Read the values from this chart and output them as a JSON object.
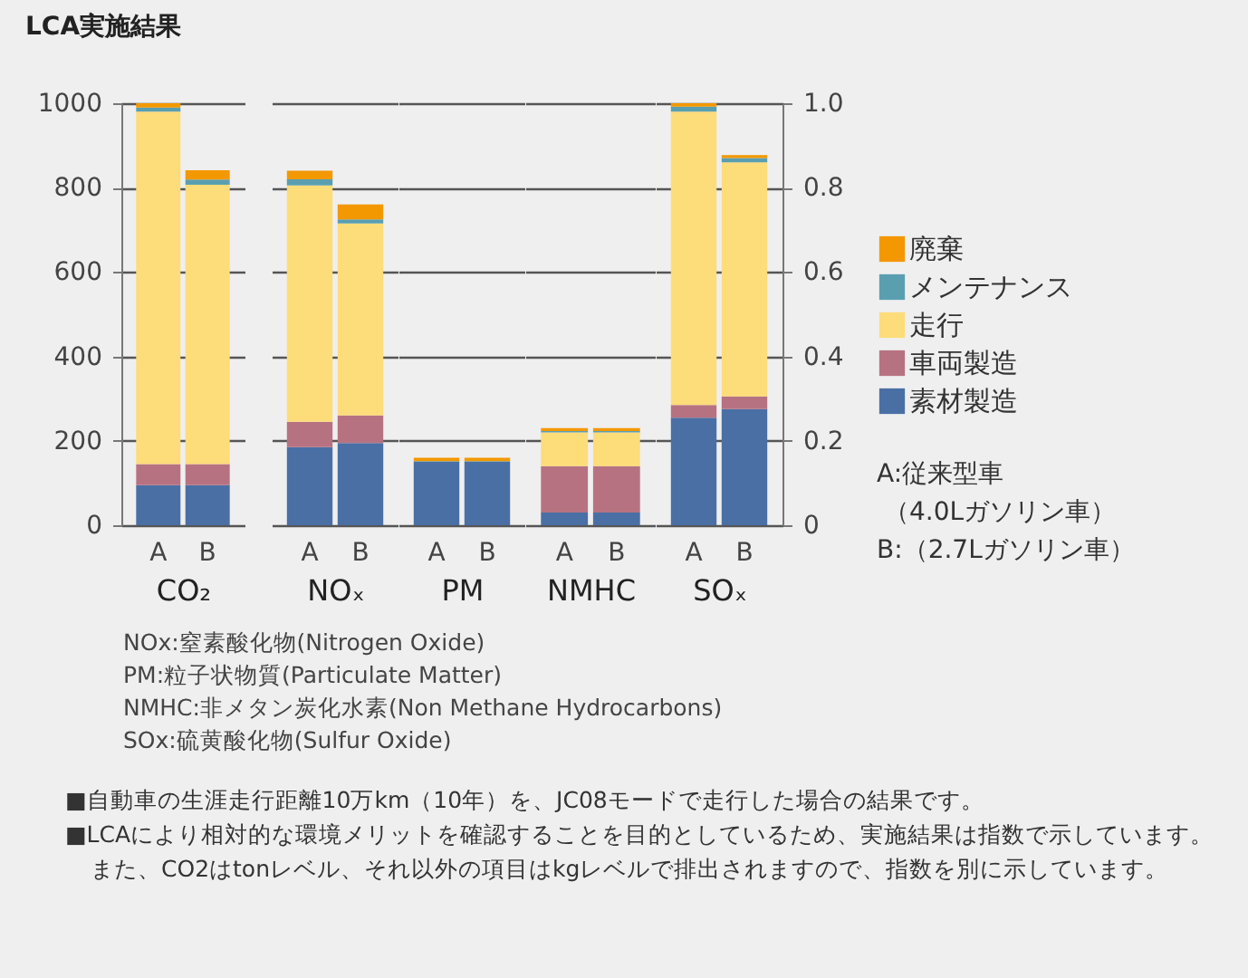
{
  "chart_data": [
    {
      "type": "bar",
      "stacked": true,
      "title": "LCA実施結果",
      "categories": [
        "A",
        "B"
      ],
      "xlabel": "CO₂",
      "ylim": [
        0,
        1000
      ],
      "yticks": [
        0,
        200,
        400,
        600,
        800,
        1000
      ],
      "grid": "y",
      "series": [
        {
          "color": "#4a6fa5",
          "values": [
            95,
            95
          ]
        },
        {
          "color": "#b77282",
          "values": [
            50,
            50
          ]
        },
        {
          "color": "#fddc7a",
          "values": [
            835,
            662
          ]
        },
        {
          "color": "#5a9fb0",
          "values": [
            10,
            12
          ]
        },
        {
          "color": "#f39800",
          "values": [
            10,
            22
          ]
        }
      ],
      "annotations": [
        "NOx:窒素酸化物(Nitrogen Oxide)",
        "PM:粒子状物質(Particulate Matter)",
        "NMHC:非メタン炭化水素(Non Methane Hydrocarbons)",
        "SOx:硫黄酸化物(Sulfur Oxide)",
        "■自動車の生涯走行距離10万km（10年）を、JC08モードで走行した場合の結果です。",
        "■LCAにより相対的な環境メリットを確認することを目的としているため、実施結果は指数で示しています。また、CO2はtonレベル、それ以外の項目はkgレベルで排出されますので、指数を別に示しています。"
      ]
    },
    {
      "type": "bar",
      "stacked": true,
      "categories": [
        "A",
        "B"
      ],
      "xlabel": "NOₓ",
      "ylim": [
        0,
        1
      ],
      "yticks": [
        0,
        0.2,
        0.4,
        0.6,
        0.8,
        1
      ],
      "grid": "y",
      "tick_labels": "x",
      "series": [
        {
          "color": "#4a6fa5",
          "values": [
            0.185,
            0.195
          ]
        },
        {
          "color": "#b77282",
          "values": [
            0.06,
            0.065
          ]
        },
        {
          "color": "#fddc7a",
          "values": [
            0.56,
            0.455
          ]
        },
        {
          "color": "#5a9fb0",
          "values": [
            0.015,
            0.01
          ]
        },
        {
          "color": "#f39800",
          "values": [
            0.02,
            0.035
          ]
        }
      ]
    },
    {
      "type": "bar",
      "stacked": true,
      "categories": [
        "A",
        "B"
      ],
      "xlabel": "PM",
      "ylim": [
        0,
        1
      ],
      "yticks": [
        0,
        0.2,
        0.4,
        0.6,
        0.8,
        1
      ],
      "grid": "y",
      "tick_labels": "x",
      "series": [
        {
          "color": "#4a6fa5",
          "values": [
            0.15,
            0.15
          ]
        },
        {
          "color": "#b77282",
          "values": [
            0,
            0
          ]
        },
        {
          "color": "#fddc7a",
          "values": [
            0,
            0
          ]
        },
        {
          "color": "#5a9fb0",
          "values": [
            0.002,
            0.002
          ]
        },
        {
          "color": "#f39800",
          "values": [
            0.008,
            0.008
          ]
        }
      ]
    },
    {
      "type": "bar",
      "stacked": true,
      "categories": [
        "A",
        "B"
      ],
      "xlabel": "NMHC",
      "ylim": [
        0,
        1
      ],
      "yticks": [
        0,
        0.2,
        0.4,
        0.6,
        0.8,
        1
      ],
      "grid": "y",
      "tick_labels": "x",
      "series": [
        {
          "color": "#4a6fa5",
          "values": [
            0.03,
            0.03
          ]
        },
        {
          "color": "#b77282",
          "values": [
            0.11,
            0.11
          ]
        },
        {
          "color": "#fddc7a",
          "values": [
            0.08,
            0.08
          ]
        },
        {
          "color": "#5a9fb0",
          "values": [
            0.003,
            0.003
          ]
        },
        {
          "color": "#f39800",
          "values": [
            0.007,
            0.007
          ]
        }
      ]
    },
    {
      "type": "bar",
      "stacked": true,
      "categories": [
        "A",
        "B"
      ],
      "xlabel": "SOₓ",
      "y2lim": [
        0,
        1
      ],
      "y2ticks": [
        0,
        0.2,
        0.4,
        0.6,
        0.8,
        {
          "value": 1,
          "label": "1.0"
        }
      ],
      "grid": "y",
      "legend": "right",
      "series": [
        {
          "name": "素材製造",
          "color": "#4a6fa5",
          "axis": "y2",
          "values": [
            0.255,
            0.275
          ]
        },
        {
          "name": "車両製造",
          "color": "#b77282",
          "axis": "y2",
          "values": [
            0.03,
            0.03
          ]
        },
        {
          "name": "走行",
          "color": "#fddc7a",
          "axis": "y2",
          "values": [
            0.695,
            0.555
          ]
        },
        {
          "name": "メンテナンス",
          "color": "#5a9fb0",
          "axis": "y2",
          "values": [
            0.012,
            0.01
          ]
        },
        {
          "name": "廃棄",
          "color": "#f39800",
          "axis": "y2",
          "values": [
            0.008,
            0.007
          ]
        }
      ],
      "annotations": [
        "A:従来型車",
        "（4.0Lガソリン車）",
        "B:（2.7Lガソリン車）"
      ]
    }
  ]
}
